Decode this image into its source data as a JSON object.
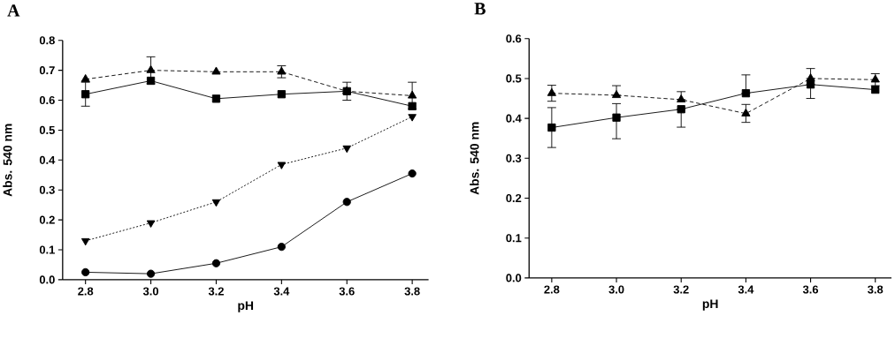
{
  "chart_data": [
    {
      "type": "line",
      "title": "A",
      "xlabel": "pH",
      "ylabel": "Abs. 540 nm",
      "x": [
        2.8,
        3.0,
        3.2,
        3.4,
        3.6,
        3.8
      ],
      "xlim": [
        2.73,
        3.85
      ],
      "xticks": [
        2.8,
        {
          "value": 3.0,
          "label": "3.0"
        },
        3.2,
        3.4,
        3.6,
        3.8
      ],
      "ylim": [
        0,
        0.8
      ],
      "yticks": [
        {
          "value": 0,
          "label": "0.0"
        },
        0.1,
        0.2,
        0.3,
        0.4,
        0.5,
        0.6,
        0.7,
        0.8
      ],
      "series": [
        {
          "color": "#000000",
          "marker": "triangle",
          "line_style": "dashed",
          "values": [
            0.67,
            0.7,
            0.695,
            0.695,
            0.63,
            0.615
          ],
          "errors": [
            null,
            0.045,
            null,
            0.02,
            null,
            0.045
          ]
        },
        {
          "color": "#000000",
          "marker": "square",
          "line_style": "solid",
          "values": [
            0.62,
            0.665,
            0.605,
            0.62,
            0.63,
            0.58
          ],
          "errors": [
            0.04,
            null,
            null,
            null,
            0.03,
            null
          ]
        },
        {
          "color": "#000000",
          "marker": "triangle-down",
          "line_style": "dotted",
          "values": [
            0.13,
            0.19,
            0.26,
            0.385,
            0.44,
            0.545
          ]
        },
        {
          "color": "#000000",
          "marker": "circle",
          "line_style": "solid",
          "values": [
            0.025,
            0.02,
            0.055,
            0.11,
            0.26,
            0.355
          ]
        }
      ]
    },
    {
      "type": "line",
      "title": "B",
      "xlabel": "pH",
      "ylabel": "Abs. 540 nm",
      "x": [
        2.8,
        3.0,
        3.2,
        3.4,
        3.6,
        3.8
      ],
      "xlim": [
        2.73,
        3.85
      ],
      "xticks": [
        2.8,
        {
          "value": 3.0,
          "label": "3.0"
        },
        3.2,
        3.4,
        3.6,
        3.8
      ],
      "ylim": [
        0,
        0.6
      ],
      "yticks": [
        {
          "value": 0,
          "label": "0.0"
        },
        0.1,
        0.2,
        0.3,
        0.4,
        0.5,
        0.6
      ],
      "series": [
        {
          "color": "#000000",
          "marker": "triangle",
          "line_style": "dashed",
          "values": [
            0.463,
            0.458,
            0.447,
            0.412,
            0.5,
            0.497
          ],
          "errors": [
            0.02,
            [
              0.458,
              0.482
            ],
            [
              0.447,
              0.467
            ],
            [
              0.39,
              0.435
            ],
            [
              0.5,
              0.525
            ],
            0.015
          ]
        },
        {
          "color": "#000000",
          "marker": "square",
          "line_style": "solid",
          "values": [
            0.377,
            0.402,
            0.423,
            0.463,
            0.485,
            0.472
          ],
          "errors": [
            0.05,
            [
              0.349,
              0.437
            ],
            [
              0.378,
              0.423
            ],
            [
              0.463,
              0.509
            ],
            [
              0.45,
              0.485
            ],
            null
          ]
        }
      ]
    }
  ]
}
